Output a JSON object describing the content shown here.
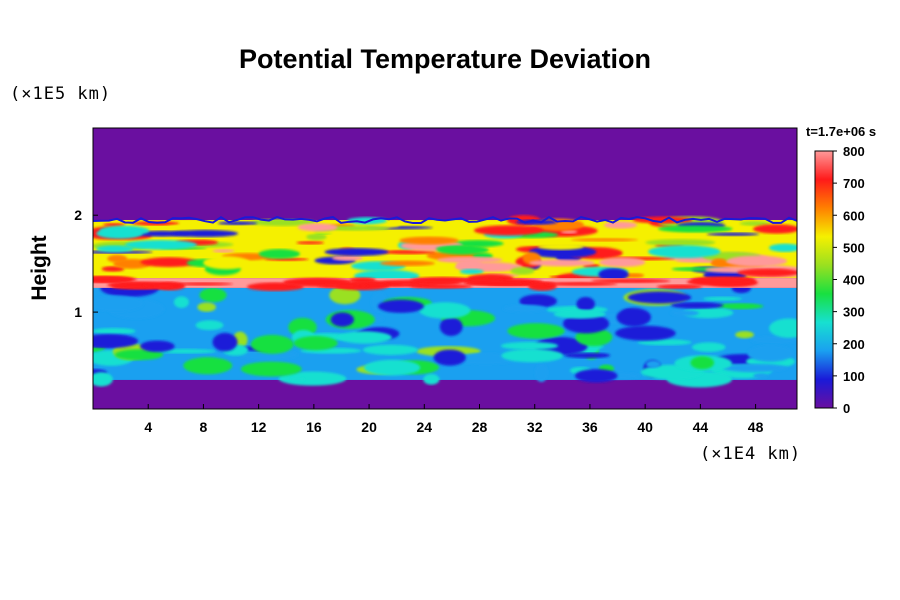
{
  "chart_data": {
    "type": "heatmap",
    "title": "Potential Temperature Deviation",
    "ylabel": "Height",
    "x_unit": "(×1E4 km)",
    "y_unit": "(×1E5 km)",
    "time_label": "t=1.7e+06 s",
    "x_ticks": [
      4,
      8,
      12,
      16,
      20,
      24,
      28,
      32,
      36,
      40,
      44,
      48
    ],
    "y_ticks": [
      1,
      2
    ],
    "xlim": [
      0,
      51
    ],
    "ylim": [
      0,
      2.9
    ],
    "colorbar": {
      "ticks": [
        0,
        100,
        200,
        300,
        400,
        500,
        600,
        700,
        800
      ],
      "range": [
        0,
        800
      ],
      "colors": [
        "#6a0fa0",
        "#1a1ad8",
        "#1aa0f0",
        "#17e0d0",
        "#18e040",
        "#9ae020",
        "#f5f000",
        "#ff8000",
        "#ff1a1a",
        "#ff9a9a"
      ]
    },
    "fields": {
      "background_value": 0,
      "turbulent_layer_y": [
        0.3,
        1.95
      ],
      "hot_band_y": [
        1.25,
        1.35
      ],
      "upper_warm_layer_y": [
        1.35,
        1.95
      ]
    }
  }
}
